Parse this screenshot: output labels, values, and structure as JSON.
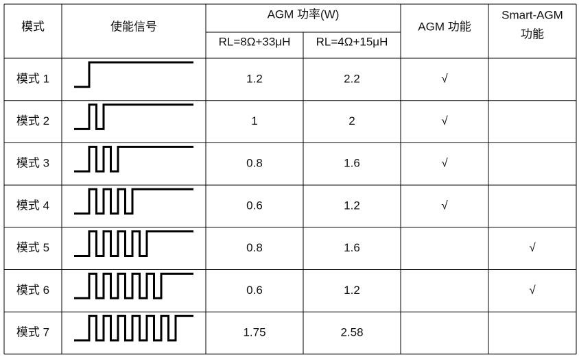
{
  "header": {
    "mode": "模式",
    "enable_signal": "使能信号",
    "agm_power": "AGM 功率(W)",
    "rl_8ohm": "RL=8Ω+33μH",
    "rl_4ohm": "RL=4Ω+15μH",
    "agm_function": "AGM 功能",
    "smart_agm_function": [
      "Smart-AGM",
      "功能"
    ]
  },
  "rows": [
    {
      "mode": "模式 1",
      "power_8ohm": 1.2,
      "power_4ohm": 2.2,
      "agm": "√"
    },
    {
      "mode": "模式 2",
      "power_8ohm": 1,
      "power_4ohm": 2,
      "agm": "√"
    },
    {
      "mode": "模式 3",
      "power_8ohm": 0.8,
      "power_4ohm": 1.6,
      "agm": "√"
    },
    {
      "mode": "模式 4",
      "power_8ohm": 0.6,
      "power_4ohm": 1.2,
      "agm": "√"
    },
    {
      "mode": "模式 5",
      "power_8ohm": 0.8,
      "power_4ohm": 1.6,
      "smart_agm": "√"
    },
    {
      "mode": "模式 6",
      "power_8ohm": 0.6,
      "power_4ohm": 1.2,
      "smart_agm": "√"
    },
    {
      "mode": "模式 7",
      "power_8ohm": 1.75,
      "power_4ohm": 2.58
    }
  ]
}
